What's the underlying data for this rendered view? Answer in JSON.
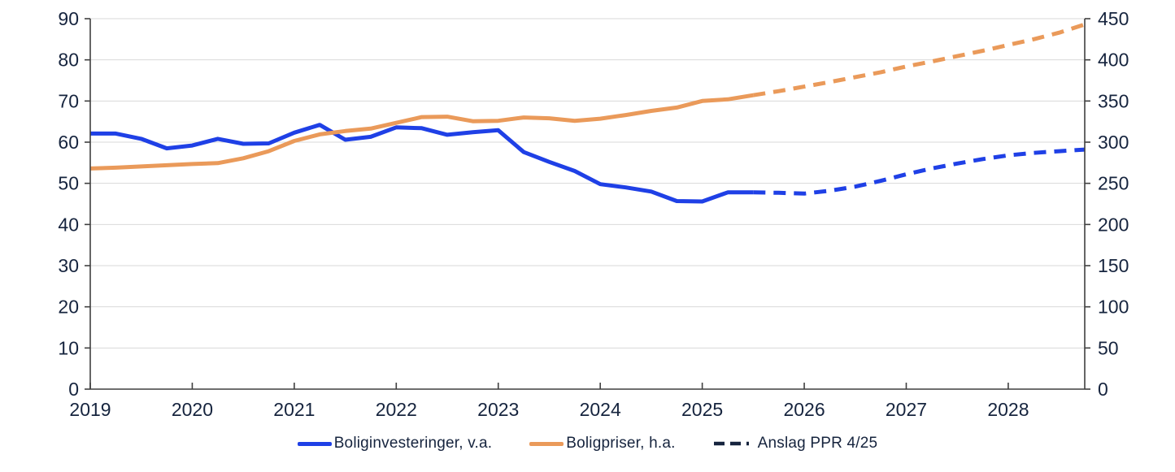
{
  "chart_data": {
    "type": "line",
    "title": "",
    "x": {
      "start": 2019.0,
      "step": 0.25,
      "end": 2028.75,
      "tick_labels": [
        "2019",
        "2020",
        "2021",
        "2022",
        "2023",
        "2024",
        "2025",
        "2026",
        "2027",
        "2028"
      ]
    },
    "left_axis": {
      "min": 0,
      "max": 90,
      "tick_labels": [
        "0",
        "10",
        "20",
        "30",
        "40",
        "50",
        "60",
        "70",
        "80",
        "90"
      ]
    },
    "right_axis": {
      "min": 0,
      "max": 450,
      "tick_labels": [
        "0",
        "50",
        "100",
        "150",
        "200",
        "250",
        "300",
        "350",
        "400",
        "450"
      ]
    },
    "grid": "horizontal",
    "colors": {
      "blue": "#1f40e6",
      "orange": "#ea9a5a",
      "navy_text": "#16243e",
      "gridline": "#d9d9d9",
      "axis": "#3f3f3f"
    },
    "series": [
      {
        "id": "boliginvesteringer",
        "axis": "left",
        "dashed": false,
        "color": "#1f40e6",
        "start_index": 0,
        "values": [
          62.1,
          62.1,
          60.8,
          58.5,
          59.2,
          60.8,
          59.6,
          59.7,
          62.3,
          64.2,
          60.6,
          61.3,
          63.6,
          63.4,
          61.8,
          62.4,
          62.9,
          57.6,
          55.2,
          53.0,
          49.8,
          49.0,
          48.0,
          45.7,
          45.6,
          47.8,
          47.8
        ]
      },
      {
        "id": "boliginvesteringer-anslag",
        "axis": "left",
        "dashed": true,
        "color": "#1f40e6",
        "start_index": 26,
        "values": [
          47.8,
          47.7,
          47.5,
          48.2,
          49.2,
          50.6,
          52.2,
          53.6,
          54.8,
          55.9,
          56.8,
          57.4,
          57.8,
          58.2
        ]
      },
      {
        "id": "boligpriser",
        "axis": "right",
        "dashed": false,
        "color": "#ea9a5a",
        "start_index": 0,
        "values": [
          268,
          269,
          270.5,
          272,
          273.5,
          274.5,
          280.5,
          289,
          301.5,
          309.5,
          313.5,
          316.5,
          323.5,
          330.5,
          331,
          325.5,
          326,
          330,
          329,
          326,
          328.5,
          333,
          338,
          342,
          350,
          352,
          357
        ]
      },
      {
        "id": "boligpriser-anslag",
        "axis": "right",
        "dashed": true,
        "color": "#ea9a5a",
        "start_index": 26,
        "values": [
          357,
          362,
          367.5,
          373,
          379,
          385,
          392,
          398,
          404.5,
          411,
          418,
          425,
          433,
          443
        ]
      }
    ],
    "legend": [
      {
        "id": "boliginvesteringer",
        "label": "Boliginvesteringer, v.a.",
        "swatch": "solid",
        "color": "#1f40e6"
      },
      {
        "id": "boligpriser",
        "label": "Boligpriser, h.a.",
        "swatch": "solid",
        "color": "#ea9a5a"
      },
      {
        "id": "anslag-ppr",
        "label": "Anslag PPR 4/25",
        "swatch": "dashed",
        "color": "#16243e"
      }
    ]
  }
}
